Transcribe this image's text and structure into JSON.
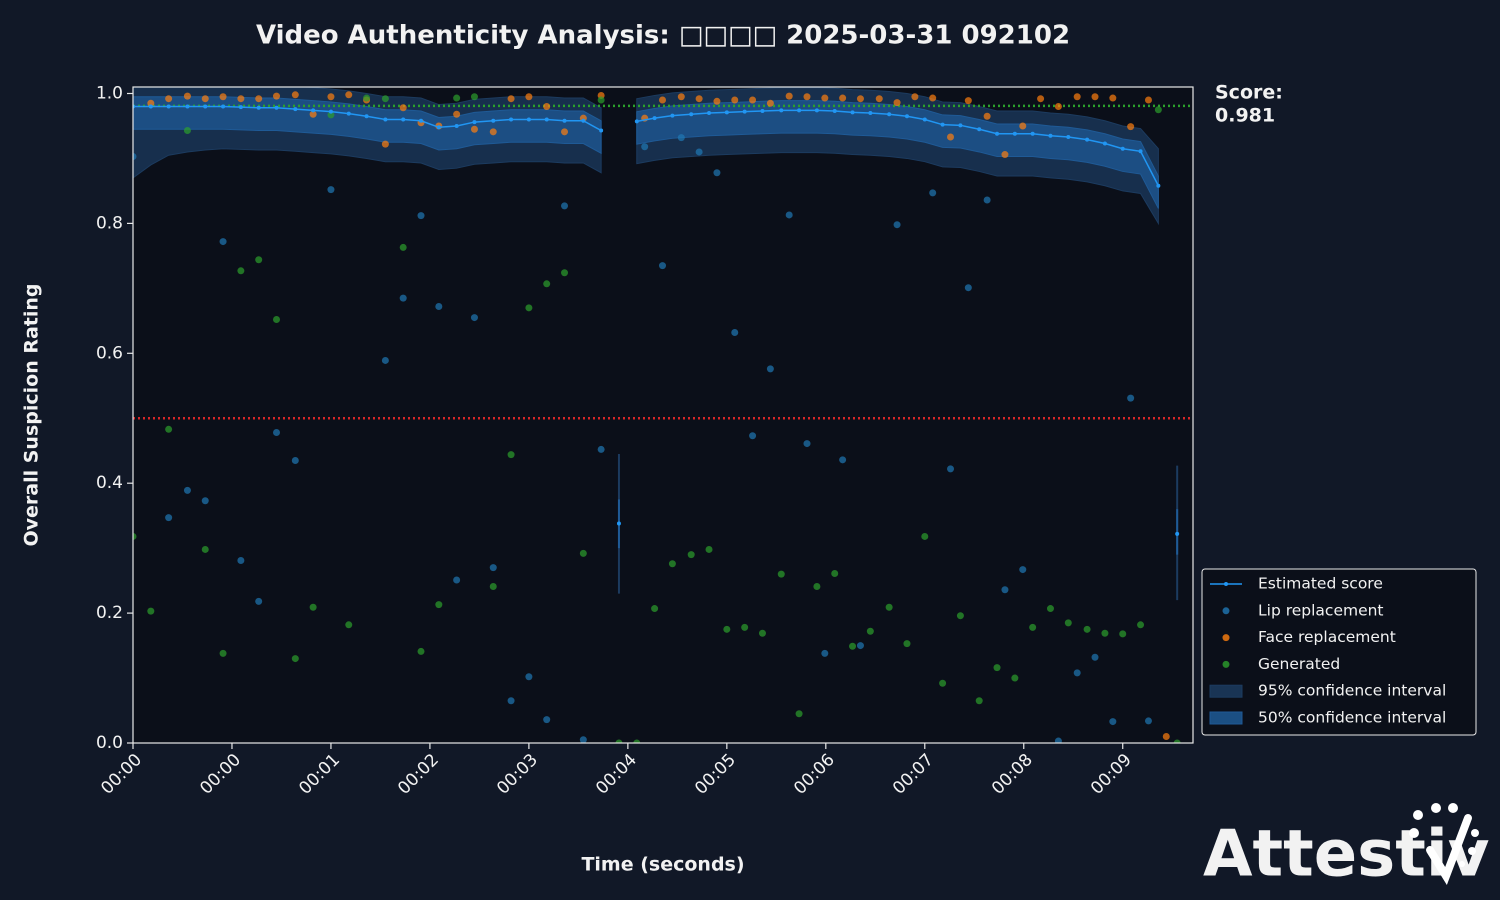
{
  "chart_data": {
    "type": "scatter",
    "title": "Video Authenticity Analysis: □□□□ 2025-03-31 092102",
    "x_label": "Time (seconds)",
    "y_label": "Overall Suspicion Rating",
    "xlim": [
      0,
      10.71
    ],
    "ylim": [
      0,
      1.01
    ],
    "xticks": [
      {
        "value": 0,
        "label": "00:00"
      },
      {
        "value": 1,
        "label": "00:00"
      },
      {
        "value": 2,
        "label": "00:01"
      },
      {
        "value": 3,
        "label": "00:02"
      },
      {
        "value": 4,
        "label": "00:03"
      },
      {
        "value": 5,
        "label": "00:04"
      },
      {
        "value": 6,
        "label": "00:05"
      },
      {
        "value": 7,
        "label": "00:06"
      },
      {
        "value": 8,
        "label": "00:07"
      },
      {
        "value": 9,
        "label": "00:08"
      },
      {
        "value": 10,
        "label": "00:09"
      }
    ],
    "yticks": [
      {
        "value": 0,
        "label": "0.0"
      },
      0.2,
      0.4,
      0.6,
      0.8,
      {
        "value": 1,
        "label": "1.0"
      }
    ],
    "threshold": 0.5,
    "threshold_color": "#d62728",
    "score_label": "Score:",
    "score": 0.981,
    "score_color": "#2ca02c",
    "legend": "lower right outside",
    "logo": "Attestiv",
    "x": [
      0,
      0.18,
      0.36,
      0.55,
      0.73,
      0.91,
      1.09,
      1.27,
      1.45,
      1.64,
      1.82,
      2.0,
      2.18,
      2.36,
      2.55,
      2.73,
      2.91,
      3.09,
      3.27,
      3.45,
      3.64,
      3.82,
      4.0,
      4.18,
      4.36,
      4.55,
      4.73,
      4.91,
      5.09,
      5.27,
      5.45,
      5.64,
      5.82,
      6.0,
      6.18,
      6.36,
      6.55,
      6.73,
      6.91,
      7.09,
      7.27,
      7.45,
      7.64,
      7.82,
      8.0,
      8.18,
      8.36,
      8.55,
      8.73,
      8.91,
      9.09,
      9.27,
      9.45,
      9.64,
      9.82,
      10.0,
      10.18,
      10.36,
      10.55
    ],
    "series": [
      {
        "name": "Estimated score",
        "type": "line",
        "color": "#2196f3",
        "values": [
          0.98,
          0.98,
          0.98,
          0.98,
          0.98,
          0.98,
          0.979,
          0.978,
          0.978,
          0.976,
          0.974,
          0.972,
          0.969,
          0.965,
          0.96,
          0.96,
          0.958,
          0.948,
          0.95,
          0.956,
          0.958,
          0.96,
          0.96,
          0.96,
          0.958,
          0.958,
          0.943,
          null,
          0.957,
          0.962,
          0.966,
          0.968,
          0.97,
          0.971,
          0.972,
          0.973,
          0.974,
          0.974,
          0.974,
          0.973,
          0.971,
          0.97,
          0.968,
          0.965,
          0.96,
          0.952,
          0.951,
          0.945,
          0.938,
          0.938,
          0.938,
          0.935,
          0.933,
          0.929,
          0.923,
          0.915,
          0.911,
          0.858,
          null
        ]
      },
      {
        "name": "Lip replacement",
        "type": "scatter",
        "color": "#1f77b4",
        "x": [
          0,
          0.36,
          0.55,
          0.73,
          0.91,
          1.09,
          1.27,
          1.45,
          1.64,
          2.0,
          2.55,
          2.73,
          2.91,
          3.09,
          3.27,
          3.45,
          3.64,
          3.82,
          4.0,
          4.18,
          4.36,
          4.55,
          4.73,
          5.17,
          5.35,
          5.54,
          5.72,
          5.9,
          6.08,
          6.26,
          6.44,
          6.63,
          6.81,
          6.99,
          7.17,
          7.35,
          7.72,
          8.08,
          8.26,
          8.44,
          8.63,
          8.81,
          8.99,
          9.35,
          9.54,
          9.72,
          9.9,
          10.08,
          10.26
        ],
        "values": [
          0.903,
          0.347,
          0.389,
          0.373,
          0.772,
          0.281,
          0.218,
          0.478,
          0.435,
          0.852,
          0.589,
          0.685,
          0.812,
          0.672,
          0.251,
          0.655,
          0.27,
          0.065,
          0.102,
          0.036,
          0.827,
          0.005,
          0.452,
          0.918,
          0.735,
          0.932,
          0.91,
          0.878,
          0.632,
          0.473,
          0.576,
          0.813,
          0.461,
          0.138,
          0.436,
          0.15,
          0.798,
          0.847,
          0.422,
          0.701,
          0.836,
          0.236,
          0.267,
          0.003,
          0.108,
          0.132,
          0.033,
          0.531,
          0.034
        ]
      },
      {
        "name": "Face replacement",
        "type": "scatter",
        "color": "#ff7f0e",
        "x": [
          0.18,
          0.36,
          0.55,
          0.73,
          0.91,
          1.09,
          1.27,
          1.45,
          1.64,
          1.82,
          2.0,
          2.18,
          2.36,
          2.55,
          2.73,
          2.91,
          3.09,
          3.27,
          3.45,
          3.64,
          3.82,
          4.0,
          4.18,
          4.36,
          4.55,
          4.73,
          5.17,
          5.35,
          5.54,
          5.72,
          5.9,
          6.08,
          6.26,
          6.44,
          6.63,
          6.81,
          6.99,
          7.17,
          7.35,
          7.54,
          7.72,
          7.9,
          8.08,
          8.26,
          8.44,
          8.63,
          8.81,
          8.99,
          9.17,
          9.35,
          9.54,
          9.72,
          9.9,
          10.08,
          10.26,
          10.44
        ],
        "values": [
          0.985,
          0.992,
          0.996,
          0.992,
          0.995,
          0.992,
          0.992,
          0.996,
          0.998,
          0.968,
          0.995,
          0.998,
          0.99,
          0.922,
          0.978,
          0.955,
          0.95,
          0.968,
          0.945,
          0.941,
          0.992,
          0.995,
          0.98,
          0.941,
          0.962,
          0.997,
          0.962,
          0.99,
          0.995,
          0.992,
          0.988,
          0.99,
          0.99,
          0.985,
          0.996,
          0.995,
          0.993,
          0.993,
          0.992,
          0.992,
          0.986,
          0.995,
          0.993,
          0.933,
          0.989,
          0.965,
          0.906,
          0.95,
          0.992,
          0.98,
          0.995,
          0.995,
          0.993,
          0.949,
          0.99,
          0.01
        ]
      },
      {
        "name": "Generated",
        "type": "scatter",
        "color": "#2ca02c",
        "values": [
          0.318,
          0.203,
          0.483,
          0.943,
          0.298,
          0.138,
          0.727,
          0.744,
          0.652,
          0.13,
          0.209,
          0.967,
          0.182,
          0.993,
          0.992,
          0.763,
          0.141,
          0.213,
          0.993,
          0.995,
          0.241,
          0.444,
          0.67,
          0.707,
          0.724,
          0.292,
          0.99,
          0.0,
          0.0,
          0.207,
          0.276,
          0.29,
          0.298,
          0.175,
          0.178,
          0.169,
          0.26,
          0.045,
          0.241,
          0.261,
          0.149,
          0.172,
          0.209,
          0.153,
          0.318,
          0.092,
          0.196,
          0.065,
          0.116,
          0.1,
          0.178,
          0.207,
          0.185,
          0.175,
          0.169,
          0.168,
          0.182,
          0.975,
          0.0
        ]
      }
    ],
    "bands": [
      {
        "name": "95% confidence interval",
        "color": "#1c3b5f",
        "lower": [
          0.87,
          0.89,
          0.905,
          0.91,
          0.913,
          0.915,
          0.914,
          0.913,
          0.913,
          0.911,
          0.909,
          0.907,
          0.904,
          0.9,
          0.895,
          0.895,
          0.893,
          0.883,
          0.885,
          0.891,
          0.893,
          0.895,
          0.895,
          0.895,
          0.893,
          0.893,
          0.878,
          null,
          0.892,
          0.897,
          0.901,
          0.903,
          0.905,
          0.906,
          0.907,
          0.908,
          0.909,
          0.909,
          0.909,
          0.908,
          0.906,
          0.905,
          0.903,
          0.9,
          0.895,
          0.887,
          0.886,
          0.88,
          0.873,
          0.873,
          0.873,
          0.87,
          0.868,
          0.864,
          0.858,
          0.85,
          0.846,
          0.8,
          null
        ],
        "upper": [
          1.015,
          1.015,
          1.015,
          1.015,
          1.015,
          1.015,
          1.014,
          1.013,
          1.013,
          1.011,
          1.009,
          1.007,
          1.004,
          1.0,
          0.995,
          0.995,
          0.993,
          0.983,
          0.985,
          0.991,
          0.993,
          0.995,
          0.995,
          0.995,
          0.993,
          0.993,
          0.978,
          null,
          0.992,
          0.997,
          1.001,
          1.003,
          1.005,
          1.006,
          1.007,
          1.008,
          1.009,
          1.009,
          1.009,
          1.008,
          1.006,
          1.005,
          1.003,
          1.0,
          0.995,
          0.987,
          0.986,
          0.98,
          0.973,
          0.973,
          0.973,
          0.97,
          0.968,
          0.964,
          0.958,
          0.95,
          0.946,
          0.915,
          null
        ]
      },
      {
        "name": "50% confidence interval",
        "color": "#1f5a96",
        "lower": [
          0.945,
          0.945,
          0.945,
          0.945,
          0.945,
          0.945,
          0.944,
          0.943,
          0.943,
          0.941,
          0.939,
          0.937,
          0.934,
          0.93,
          0.925,
          0.925,
          0.923,
          0.913,
          0.915,
          0.921,
          0.923,
          0.925,
          0.925,
          0.925,
          0.923,
          0.923,
          0.908,
          null,
          0.922,
          0.927,
          0.931,
          0.933,
          0.935,
          0.936,
          0.937,
          0.938,
          0.939,
          0.939,
          0.939,
          0.938,
          0.936,
          0.935,
          0.933,
          0.93,
          0.925,
          0.917,
          0.916,
          0.91,
          0.903,
          0.903,
          0.903,
          0.9,
          0.898,
          0.894,
          0.888,
          0.88,
          0.876,
          0.823,
          null
        ],
        "upper": [
          0.995,
          0.995,
          0.995,
          0.995,
          0.995,
          0.995,
          0.994,
          0.993,
          0.993,
          0.991,
          0.989,
          0.987,
          0.984,
          0.98,
          0.975,
          0.975,
          0.973,
          0.963,
          0.965,
          0.971,
          0.973,
          0.975,
          0.975,
          0.975,
          0.973,
          0.973,
          0.958,
          null,
          0.972,
          0.977,
          0.981,
          0.983,
          0.985,
          0.986,
          0.987,
          0.988,
          0.989,
          0.989,
          0.989,
          0.988,
          0.986,
          0.985,
          0.983,
          0.98,
          0.975,
          0.967,
          0.966,
          0.96,
          0.953,
          0.953,
          0.953,
          0.95,
          0.948,
          0.944,
          0.938,
          0.93,
          0.926,
          0.873,
          null
        ]
      }
    ],
    "isolated": {
      "x": [
        4.91,
        10.55
      ],
      "values": [
        0.338,
        0.322
      ],
      "ci95_lower": [
        0.23,
        0.22
      ],
      "ci95_upper": [
        0.445,
        0.427
      ],
      "ci50_lower": [
        0.3,
        0.29
      ],
      "ci50_upper": [
        0.375,
        0.36
      ]
    }
  }
}
